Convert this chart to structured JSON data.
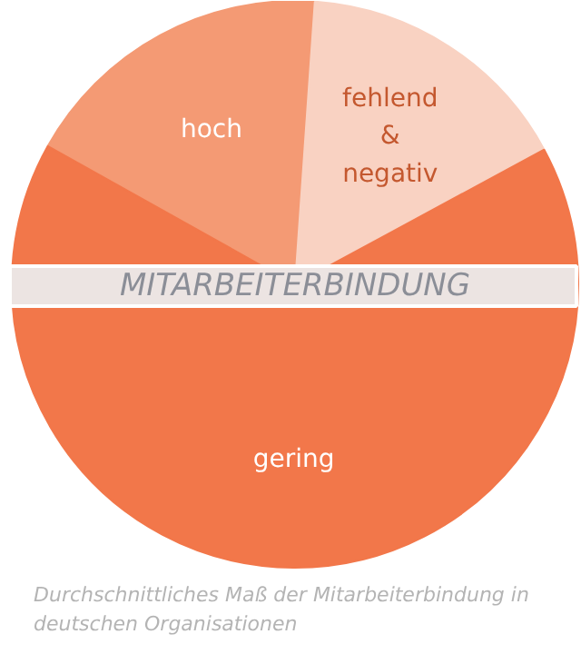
{
  "chart_data": {
    "type": "pie",
    "title": "MITARBEITERBINDUNG",
    "categories": [
      "hoch",
      "fehlend & negativ",
      "gering"
    ],
    "values": [
      18,
      16,
      66
    ],
    "colors": [
      "#f49a74",
      "#f9d2c2",
      "#f2774a"
    ],
    "annotations": [
      "Durchschnittliches Maß der Mitarbeiterbindung in deutschen Organisationen"
    ]
  }
}
